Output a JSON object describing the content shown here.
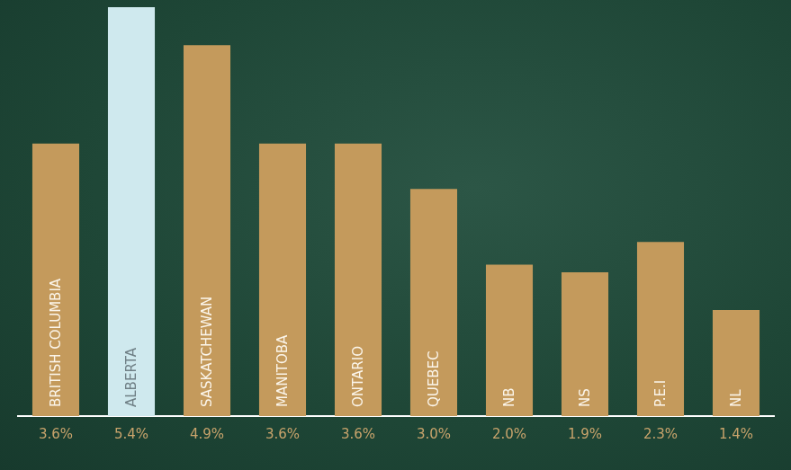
{
  "chart_data": {
    "type": "bar",
    "categories": [
      "BRITISH COLUMBIA",
      "ALBERTA",
      "SASKATCHEWAN",
      "MANITOBA",
      "ONTARIO",
      "QUEBEC",
      "NB",
      "NS",
      "P.E.I",
      "NL"
    ],
    "values": [
      3.6,
      5.4,
      4.9,
      3.6,
      3.6,
      3.0,
      2.0,
      1.9,
      2.3,
      1.4
    ],
    "value_labels": [
      "3.6%",
      "5.4%",
      "4.9%",
      "3.6%",
      "3.6%",
      "3.0%",
      "2.0%",
      "1.9%",
      "2.3%",
      "1.4%"
    ],
    "colors": [
      "#c49a5c",
      "#cfe9ee",
      "#c49a5c",
      "#c49a5c",
      "#c49a5c",
      "#c49a5c",
      "#c49a5c",
      "#c49a5c",
      "#c49a5c",
      "#c49a5c"
    ],
    "ylim": [
      0,
      5.4
    ],
    "yticks": [],
    "grid": false,
    "data_labels": true,
    "tick_labels": "x"
  }
}
